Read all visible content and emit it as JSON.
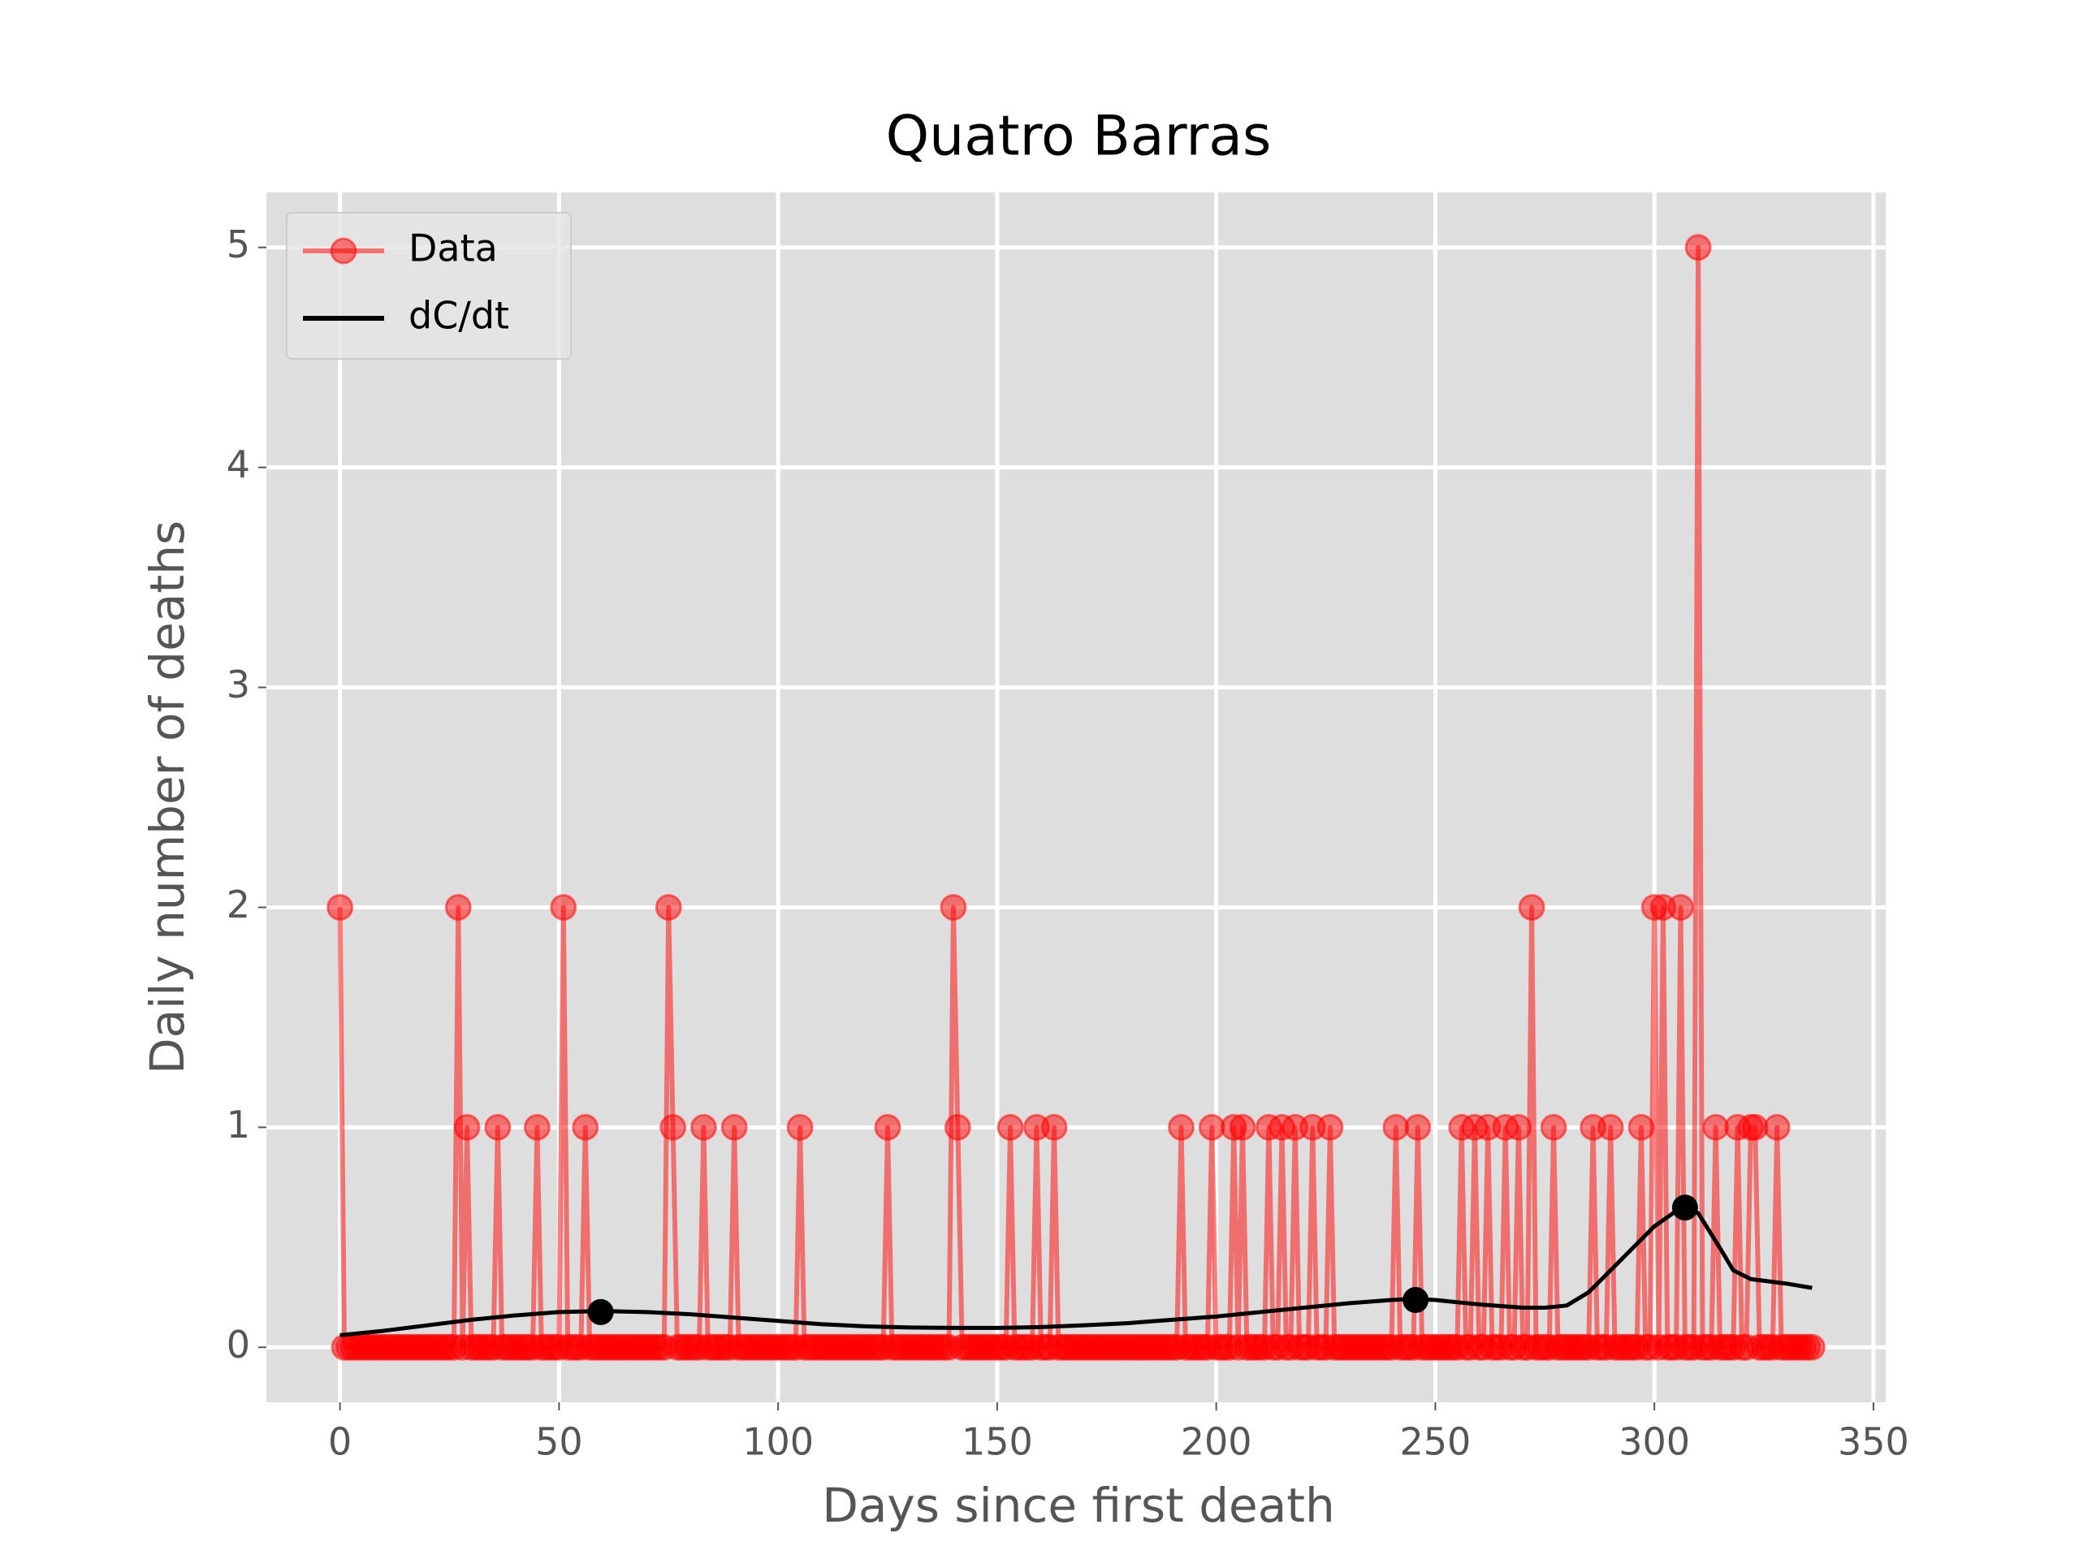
{
  "chart_data": {
    "type": "line",
    "title": "Quatro Barras",
    "x_label": "Days since first death",
    "y_label": "Daily number of deaths",
    "xlim": [
      -16.8,
      352.8
    ],
    "ylim": [
      -0.25,
      5.25
    ],
    "xticks": [
      0,
      50,
      100,
      150,
      200,
      250,
      300,
      350
    ],
    "yticks": [
      0,
      1,
      2,
      3,
      4,
      5
    ],
    "grid": true,
    "legend": "upper left",
    "series": [
      {
        "name": "Data",
        "color": "#ff0000",
        "x": [
          0,
          1,
          2,
          3,
          4,
          5,
          6,
          7,
          8,
          9,
          10,
          11,
          12,
          13,
          14,
          15,
          16,
          17,
          18,
          19,
          20,
          21,
          22,
          23,
          24,
          25,
          26,
          27,
          28,
          29,
          30,
          31,
          32,
          33,
          34,
          35,
          36,
          37,
          38,
          39,
          40,
          41,
          42,
          43,
          44,
          45,
          46,
          47,
          48,
          49,
          50,
          51,
          52,
          53,
          54,
          55,
          56,
          57,
          58,
          59,
          60,
          61,
          62,
          63,
          64,
          65,
          66,
          67,
          68,
          69,
          70,
          71,
          72,
          73,
          74,
          75,
          76,
          77,
          78,
          79,
          80,
          81,
          82,
          83,
          84,
          85,
          86,
          87,
          88,
          89,
          90,
          91,
          92,
          93,
          94,
          95,
          96,
          97,
          98,
          99,
          100,
          101,
          102,
          103,
          104,
          105,
          106,
          107,
          108,
          109,
          110,
          111,
          112,
          113,
          114,
          115,
          116,
          117,
          118,
          119,
          120,
          121,
          122,
          123,
          124,
          125,
          126,
          127,
          128,
          129,
          130,
          131,
          132,
          133,
          134,
          135,
          136,
          137,
          138,
          139,
          140,
          141,
          142,
          143,
          144,
          145,
          146,
          147,
          148,
          149,
          150,
          151,
          152,
          153,
          154,
          155,
          156,
          157,
          158,
          159,
          160,
          161,
          162,
          163,
          164,
          165,
          166,
          167,
          168,
          169,
          170,
          171,
          172,
          173,
          174,
          175,
          176,
          177,
          178,
          179,
          180,
          181,
          182,
          183,
          184,
          185,
          186,
          187,
          188,
          189,
          190,
          191,
          192,
          193,
          194,
          195,
          196,
          197,
          198,
          199,
          200,
          201,
          202,
          203,
          204,
          205,
          206,
          207,
          208,
          209,
          210,
          211,
          212,
          213,
          214,
          215,
          216,
          217,
          218,
          219,
          220,
          221,
          222,
          223,
          224,
          225,
          226,
          227,
          228,
          229,
          230,
          231,
          232,
          233,
          234,
          235,
          236,
          237,
          238,
          239,
          240,
          241,
          242,
          243,
          244,
          245,
          246,
          247,
          248,
          249,
          250,
          251,
          252,
          253,
          254,
          255,
          256,
          257,
          258,
          259,
          260,
          261,
          262,
          263,
          264,
          265,
          266,
          267,
          268,
          269,
          270,
          271,
          272,
          273,
          274,
          275,
          276,
          277,
          278,
          279,
          280,
          281,
          282,
          283,
          284,
          285,
          286,
          287,
          288,
          289,
          290,
          291,
          292,
          293,
          294,
          295,
          296,
          297,
          298,
          299,
          300,
          301,
          302,
          303,
          304,
          305,
          306,
          307,
          308,
          309,
          310,
          311,
          312,
          313,
          314,
          315,
          316,
          317,
          318,
          319,
          320,
          321,
          322,
          323,
          324,
          325,
          326,
          327,
          328,
          329,
          330,
          331,
          332,
          333,
          334,
          335,
          336
        ],
        "values": [
          2,
          0,
          0,
          0,
          0,
          0,
          0,
          0,
          0,
          0,
          0,
          0,
          0,
          0,
          0,
          0,
          0,
          0,
          0,
          0,
          0,
          0,
          0,
          0,
          0,
          0,
          0,
          2,
          0,
          1,
          0,
          0,
          0,
          0,
          0,
          0,
          1,
          0,
          0,
          0,
          0,
          0,
          0,
          0,
          0,
          1,
          0,
          0,
          0,
          0,
          0,
          2,
          0,
          0,
          0,
          0,
          1,
          0,
          0,
          0,
          0,
          0,
          0,
          0,
          0,
          0,
          0,
          0,
          0,
          0,
          0,
          0,
          0,
          0,
          0,
          2,
          1,
          0,
          0,
          0,
          0,
          0,
          0,
          1,
          0,
          0,
          0,
          0,
          0,
          0,
          1,
          0,
          0,
          0,
          0,
          0,
          0,
          0,
          0,
          0,
          0,
          0,
          0,
          0,
          0,
          1,
          0,
          0,
          0,
          0,
          0,
          0,
          0,
          0,
          0,
          0,
          0,
          0,
          0,
          0,
          0,
          0,
          0,
          0,
          0,
          1,
          0,
          0,
          0,
          0,
          0,
          0,
          0,
          0,
          0,
          0,
          0,
          0,
          0,
          0,
          2,
          1,
          0,
          0,
          0,
          0,
          0,
          0,
          0,
          0,
          0,
          0,
          0,
          1,
          0,
          0,
          0,
          0,
          0,
          1,
          0,
          0,
          0,
          1,
          0,
          0,
          0,
          0,
          0,
          0,
          0,
          0,
          0,
          0,
          0,
          0,
          0,
          0,
          0,
          0,
          0,
          0,
          0,
          0,
          0,
          0,
          0,
          0,
          0,
          0,
          0,
          0,
          1,
          0,
          0,
          0,
          0,
          0,
          0,
          1,
          0,
          0,
          0,
          0,
          1,
          0,
          1,
          0,
          0,
          0,
          0,
          0,
          1,
          0,
          0,
          1,
          0,
          0,
          1,
          0,
          0,
          0,
          1,
          0,
          0,
          0,
          1,
          0,
          0,
          0,
          0,
          0,
          0,
          0,
          0,
          0,
          0,
          0,
          0,
          0,
          0,
          1,
          0,
          0,
          0,
          0,
          1,
          0,
          0,
          0,
          0,
          0,
          0,
          0,
          0,
          0,
          1,
          0,
          0,
          1,
          0,
          0,
          1,
          0,
          0,
          0,
          1,
          0,
          0,
          1,
          0,
          0,
          2,
          0,
          0,
          0,
          0,
          1,
          0,
          0,
          0,
          0,
          0,
          0,
          0,
          0,
          1,
          0,
          0,
          0,
          1,
          0,
          0,
          0,
          0,
          0,
          0,
          1,
          0,
          0,
          2,
          0,
          2,
          0,
          0,
          0,
          2,
          0,
          0,
          0,
          5,
          0,
          0,
          0,
          1,
          0,
          0,
          0,
          0,
          1,
          0,
          0,
          1,
          1,
          0,
          0,
          0,
          0,
          1,
          0,
          0,
          0,
          0,
          0,
          0,
          0,
          0
        ]
      },
      {
        "name": "dC/dt",
        "color": "#000000",
        "x": [
          0,
          10,
          20,
          30,
          40,
          50,
          60,
          70,
          80,
          90,
          100,
          110,
          120,
          130,
          140,
          150,
          160,
          170,
          180,
          190,
          200,
          210,
          220,
          230,
          240,
          245,
          250,
          260,
          270,
          275,
          280,
          285,
          290,
          295,
          300,
          305,
          307,
          310,
          315,
          318,
          322,
          330,
          336
        ],
        "values": [
          0.055,
          0.075,
          0.1,
          0.125,
          0.145,
          0.16,
          0.165,
          0.16,
          0.15,
          0.135,
          0.12,
          0.105,
          0.095,
          0.09,
          0.088,
          0.088,
          0.092,
          0.1,
          0.11,
          0.125,
          0.14,
          0.16,
          0.18,
          0.2,
          0.215,
          0.22,
          0.215,
          0.195,
          0.18,
          0.18,
          0.19,
          0.25,
          0.35,
          0.45,
          0.55,
          0.62,
          0.635,
          0.61,
          0.45,
          0.35,
          0.31,
          0.29,
          0.27
        ],
        "peaks": {
          "x": [
            59.5,
            245.5,
            307
          ],
          "values": [
            0.16,
            0.215,
            0.635
          ]
        }
      }
    ]
  }
}
